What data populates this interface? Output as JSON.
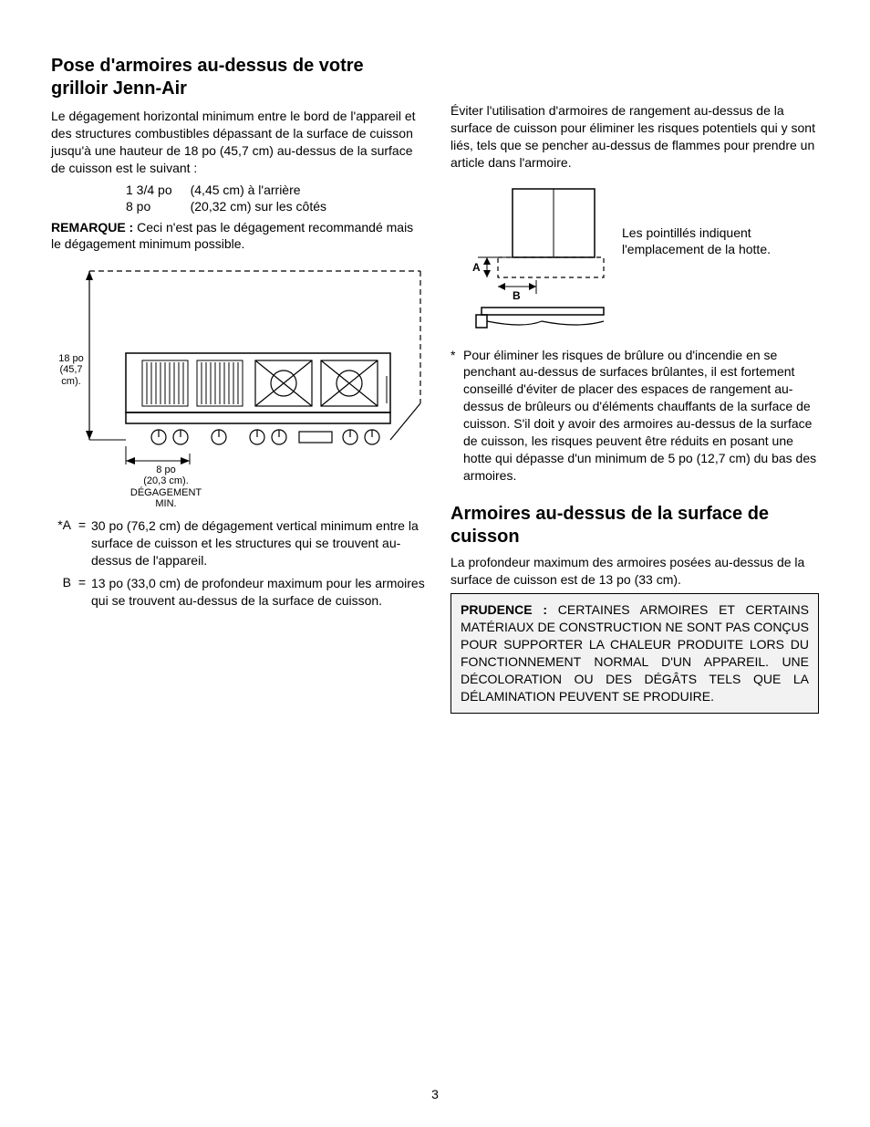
{
  "leftCol": {
    "heading": "Pose d'armoires au-dessus de votre grilloir Jenn-Air",
    "intro": "Le dégagement horizontal minimum entre le bord de l'appareil et des structures combustibles dépassant de la surface de cuisson jusqu'à une hauteur de 18 po (45,7 cm) au-dessus de la surface de cuisson est le suivant :",
    "clearances": [
      {
        "imp": "1 3/4 po",
        "metric": "(4,45 cm) à l'arrière"
      },
      {
        "imp": "8  po",
        "metric": "(20,32 cm) sur les côtés"
      }
    ],
    "noteLabel": "REMARQUE :",
    "noteText": " Ceci n'est pas le dégagement recommandé mais le dégagement minimum possible.",
    "fig1": {
      "leftLabel": "18 po\n(45,7\ncm).",
      "bottomLabel": "8 po\n(20,3 cm).\nDÉGAGEMENT\nMIN."
    },
    "defs": [
      {
        "sym": "*A",
        "text": "30 po (76,2 cm) de dégagement vertical minimum entre la surface de cuisson et les structures qui se trouvent au-dessus de l'appareil."
      },
      {
        "sym": "B",
        "text": "13 po (33,0 cm) de profondeur maximum pour les armoires qui se trouvent au-dessus de la surface de cuisson."
      }
    ]
  },
  "rightCol": {
    "intro": "Éviter l'utilisation d'armoires de rangement au-dessus de la surface de cuisson pour éliminer les risques potentiels qui y sont liés, tels que se pencher au-dessus de flammes pour prendre un article dans l'armoire.",
    "fig2Caption": "Les pointillés indiquent l'emplacement de la hotte.",
    "fig2": {
      "A": "A",
      "B": "B"
    },
    "starNote": "Pour éliminer les risques de brûlure ou d'incendie en se penchant au-dessus de surfaces brûlantes, il est fortement conseillé d'éviter de placer des espaces de rangement au-dessus de brûleurs ou d'éléments chauffants de la surface de cuisson. S'il doit y avoir des armoires au-dessus de la surface de cuisson, les risques peuvent être réduits en posant une hotte qui dépasse d'un minimum de 5 po (12,7 cm) du bas des armoires.",
    "heading2": "Armoires au-dessus de la surface de cuisson",
    "para2": "La profondeur maximum des armoires posées au-dessus de la surface de cuisson est de 13 po (33 cm).",
    "prudenceLabel": "PRUDENCE :",
    "prudenceText": " CERTAINES ARMOIRES ET CERTAINS MATÉRIAUX DE CONSTRUCTION NE SONT PAS CONÇUS POUR SUPPORTER LA CHALEUR PRODUITE LORS DU FONCTIONNEMENT NORMAL D'UN APPAREIL. UNE DÉCOLORATION OU DES DÉGÂTS TELS QUE LA DÉLAMINATION PEUVENT SE PRODUIRE."
  },
  "pageNumber": "3"
}
